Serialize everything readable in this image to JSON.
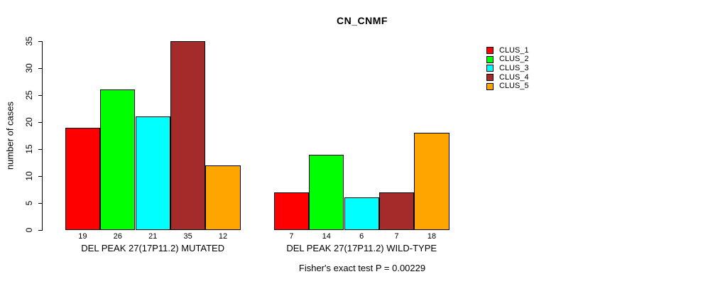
{
  "title": "CN_CNMF",
  "chart_data": {
    "type": "bar",
    "title": "CN_CNMF",
    "xlabel": "",
    "ylabel": "number of cases",
    "ylim": [
      0,
      35
    ],
    "yticks": [
      0,
      5,
      10,
      15,
      20,
      25,
      30,
      35
    ],
    "grid": false,
    "legend_position": "top-right",
    "bar_value_labels": true,
    "series": [
      {
        "name": "CLUS_1",
        "color": "#FF0000"
      },
      {
        "name": "CLUS_2",
        "color": "#00FF00"
      },
      {
        "name": "CLUS_3",
        "color": "#00FFFF"
      },
      {
        "name": "CLUS_4",
        "color": "#A52A2A"
      },
      {
        "name": "CLUS_5",
        "color": "#FFA500"
      }
    ],
    "categories": [
      "DEL PEAK 27(17P11.2) MUTATED",
      "DEL PEAK 27(17P11.2) WILD-TYPE"
    ],
    "groups": [
      {
        "label": "DEL PEAK 27(17P11.2) MUTATED",
        "values": [
          19,
          26,
          21,
          35,
          12
        ]
      },
      {
        "label": "DEL PEAK 27(17P11.2) WILD-TYPE",
        "values": [
          7,
          14,
          6,
          7,
          18
        ]
      }
    ],
    "annotation": "Fisher's exact test P = 0.00229",
    "colors": {
      "background": "#FFFFFF",
      "axis": "#000000",
      "bar_border": "#000000"
    }
  }
}
